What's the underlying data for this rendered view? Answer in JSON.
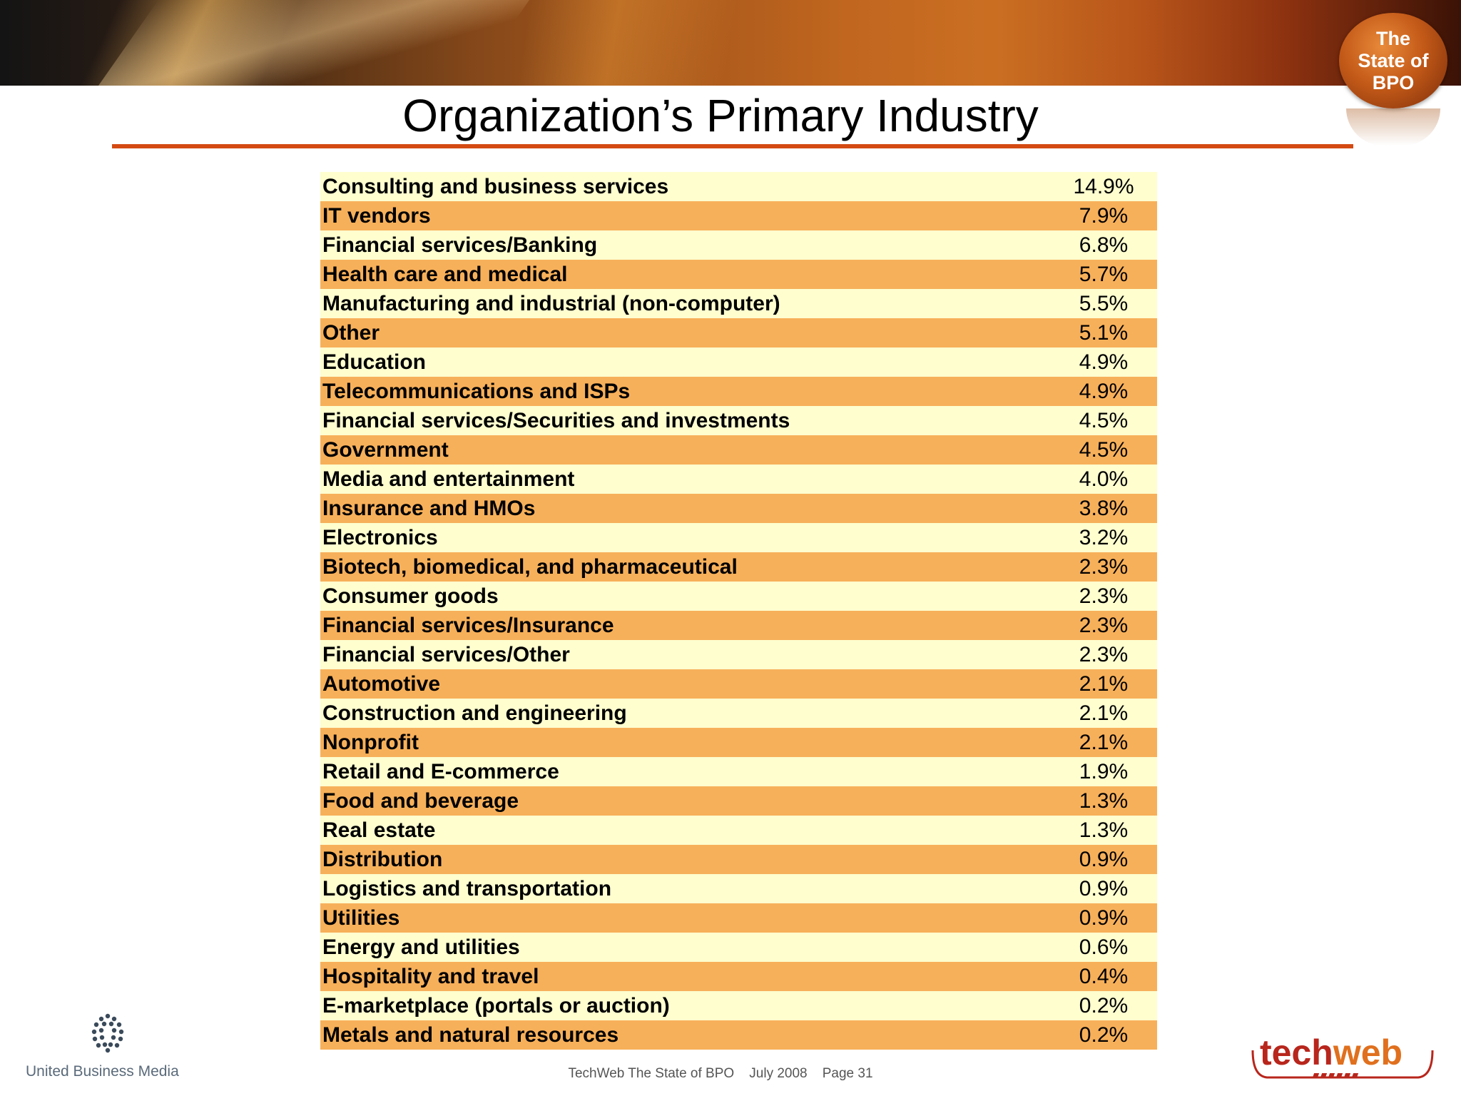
{
  "header": {
    "badge_text": "The\nState of\nBPO",
    "title": "Organization’s Primary Industry",
    "accent_color": "#d44a12"
  },
  "table": {
    "colors": {
      "light_row": "#fefecf",
      "dark_row": "#f7b05a"
    },
    "rows": [
      {
        "label": "Consulting and business services",
        "value": "14.9%"
      },
      {
        "label": "IT vendors",
        "value": "7.9%"
      },
      {
        "label": "Financial services/Banking",
        "value": "6.8%"
      },
      {
        "label": "Health care and medical",
        "value": "5.7%"
      },
      {
        "label": "Manufacturing and industrial (non-computer)",
        "value": "5.5%"
      },
      {
        "label": "Other",
        "value": "5.1%"
      },
      {
        "label": "Education",
        "value": "4.9%"
      },
      {
        "label": "Telecommunications and ISPs",
        "value": "4.9%"
      },
      {
        "label": "Financial services/Securities and investments",
        "value": "4.5%"
      },
      {
        "label": "Government",
        "value": "4.5%"
      },
      {
        "label": "Media and entertainment",
        "value": "4.0%"
      },
      {
        "label": "Insurance and HMOs",
        "value": "3.8%"
      },
      {
        "label": "Electronics",
        "value": "3.2%"
      },
      {
        "label": "Biotech, biomedical, and pharmaceutical",
        "value": "2.3%"
      },
      {
        "label": "Consumer goods",
        "value": "2.3%"
      },
      {
        "label": "Financial services/Insurance",
        "value": "2.3%"
      },
      {
        "label": "Financial services/Other",
        "value": "2.3%"
      },
      {
        "label": "Automotive",
        "value": "2.1%"
      },
      {
        "label": "Construction and engineering",
        "value": "2.1%"
      },
      {
        "label": "Nonprofit",
        "value": "2.1%"
      },
      {
        "label": "Retail and E-commerce",
        "value": "1.9%"
      },
      {
        "label": "Food and beverage",
        "value": "1.3%"
      },
      {
        "label": "Real estate",
        "value": "1.3%"
      },
      {
        "label": "Distribution",
        "value": "0.9%"
      },
      {
        "label": "Logistics and transportation",
        "value": "0.9%"
      },
      {
        "label": "Utilities",
        "value": "0.9%"
      },
      {
        "label": "Energy and utilities",
        "value": "0.6%"
      },
      {
        "label": "Hospitality and travel",
        "value": "0.4%"
      },
      {
        "label": "E-marketplace (portals or auction)",
        "value": "0.2%"
      },
      {
        "label": "Metals and natural resources",
        "value": "0.2%"
      }
    ]
  },
  "footer": {
    "ubm_logo_text": "United Business Media",
    "text": "TechWeb The State of BPO    July 2008    Page 31",
    "techweb_logo": {
      "tech": "tech",
      "web": "web",
      "tech_color": "#b8261c",
      "web_color": "#e0701e"
    }
  }
}
